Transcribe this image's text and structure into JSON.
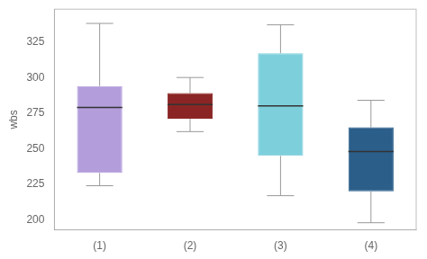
{
  "chart_data": {
    "type": "box",
    "ylabel": "wbs",
    "categories": [
      "(1)",
      "(2)",
      "(3)",
      "(4)"
    ],
    "whisker_low": [
      224,
      262,
      217,
      198
    ],
    "q1": [
      233,
      271,
      245,
      220
    ],
    "median": [
      279,
      281,
      280,
      248
    ],
    "q3": [
      294,
      289,
      317,
      265
    ],
    "whisker_high": [
      338,
      300,
      337,
      284
    ],
    "colors": [
      "#b39ddb",
      "#8b2525",
      "#7ecfdc",
      "#2b5f8a"
    ],
    "ylim": [
      193,
      348
    ],
    "yticks": [
      200,
      225,
      250,
      275,
      300,
      325
    ],
    "grid": false
  }
}
